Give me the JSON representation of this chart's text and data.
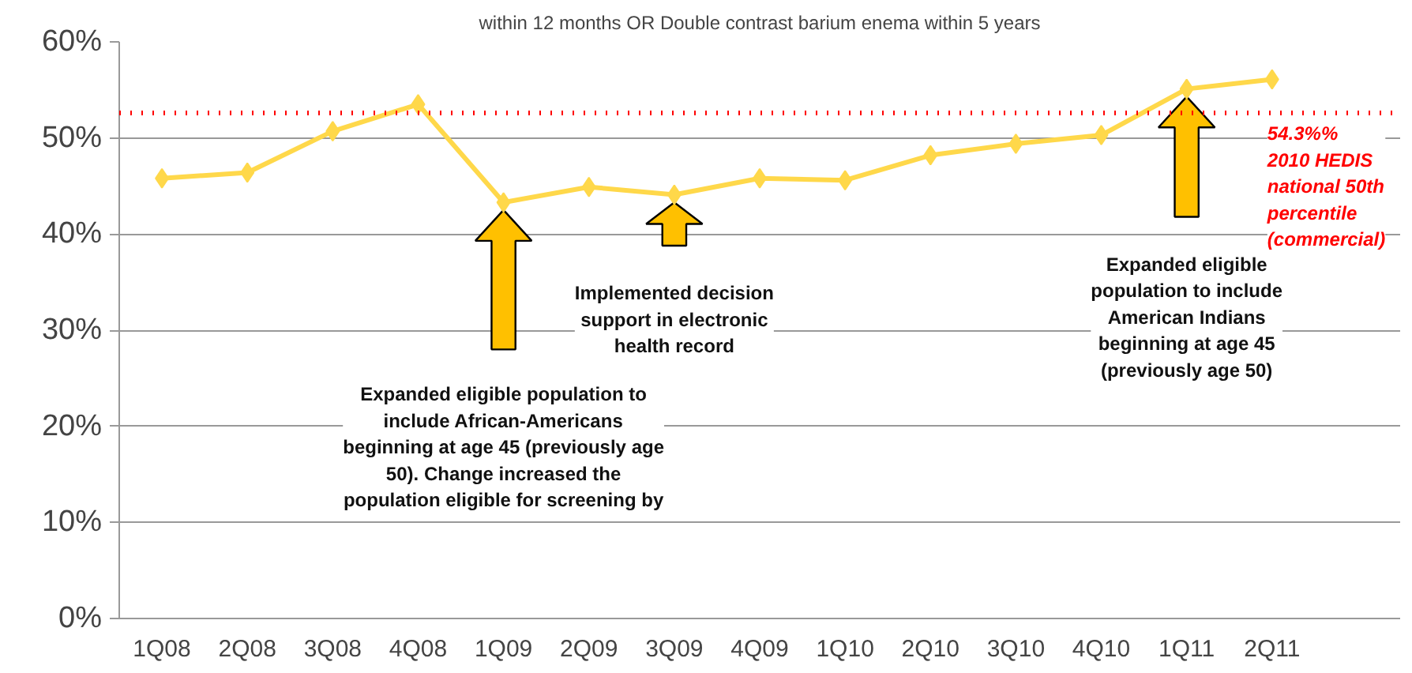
{
  "chart_data": {
    "type": "line",
    "title": "within 12 months OR Double contrast barium enema within 5 years",
    "categories": [
      "1Q08",
      "2Q08",
      "3Q08",
      "4Q08",
      "1Q09",
      "2Q09",
      "3Q09",
      "4Q09",
      "1Q10",
      "2Q10",
      "3Q10",
      "4Q10",
      "1Q11",
      "2Q11"
    ],
    "series": [
      {
        "color": "#ffd84a",
        "values": [
          45.8,
          46.4,
          50.7,
          53.5,
          43.3,
          44.9,
          44.1,
          45.8,
          45.6,
          48.2,
          49.4,
          50.3,
          55.1,
          56.1
        ]
      }
    ],
    "ylim": [
      0,
      60
    ],
    "yticks": [
      {
        "value": 0,
        "label": "0%"
      },
      {
        "value": 10,
        "label": "10%"
      },
      {
        "value": 20,
        "label": "20%"
      },
      {
        "value": 30,
        "label": "30%"
      },
      {
        "value": 40,
        "label": "40%"
      },
      {
        "value": 50,
        "label": "50%"
      },
      {
        "value": 60,
        "label": "60%"
      }
    ],
    "grid": "y",
    "marker": "diamond",
    "line_style": "solid",
    "ref_lines": [
      {
        "axis": "y",
        "value": 52.6,
        "label": "54.3%%\n2010 HEDIS\nnational 50th\npercentile\n(commercial)",
        "color": "#ff0000",
        "line_style": "dotted"
      }
    ],
    "annotations": [
      "Expanded eligible population to\ninclude African-Americans\nbeginning at age 45 (previously age\n50). Change increased the\npopulation eligible for screening by",
      "Implemented decision\nsupport in electronic\nhealth record",
      "Expanded eligible\npopulation to include\nAmerican Indians\nbeginning at age 45\n(previously age 50)"
    ]
  }
}
